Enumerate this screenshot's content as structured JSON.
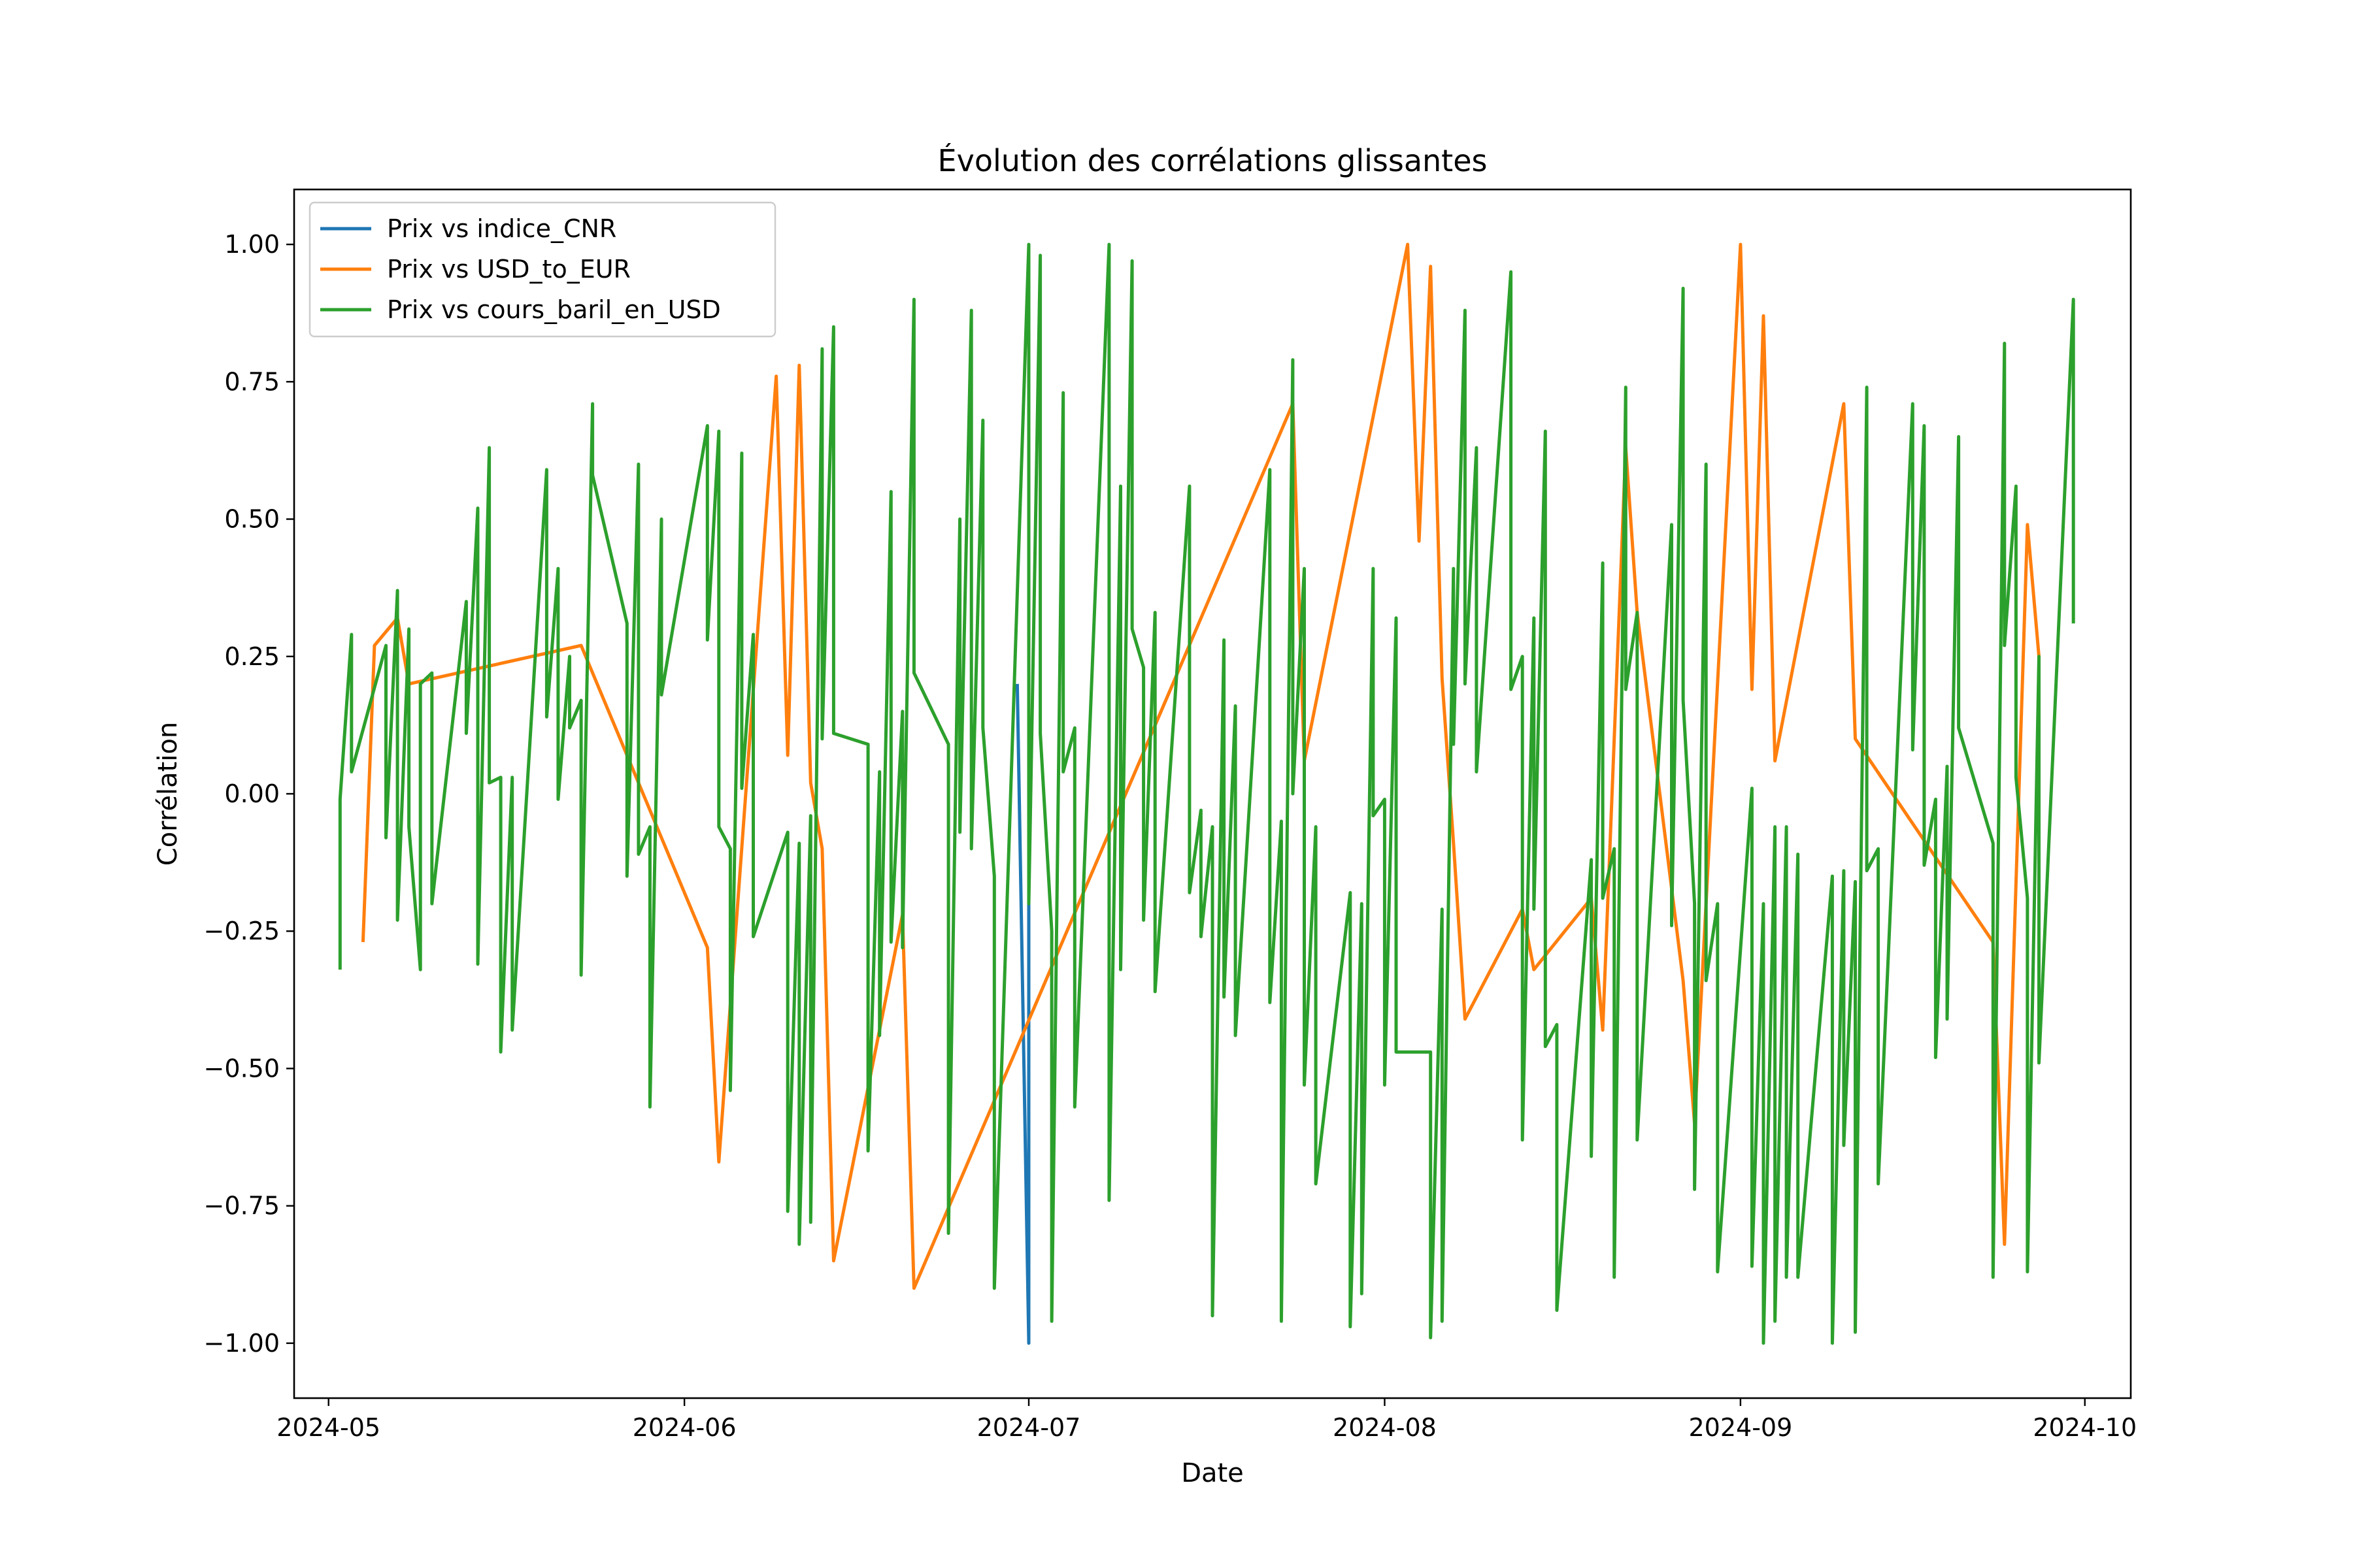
{
  "chart_data": {
    "type": "line",
    "title": "Évolution des corrélations glissantes",
    "xlabel": "Date",
    "ylabel": "Corrélation",
    "xlim": [
      "2024-04-28",
      "2024-10-05"
    ],
    "ylim": [
      -1.1,
      1.1
    ],
    "x_ticks": [
      "2024-05-01",
      "2024-06-01",
      "2024-07-01",
      "2024-08-01",
      "2024-09-01",
      "2024-10-01"
    ],
    "x_tick_labels": [
      "2024-05",
      "2024-06",
      "2024-07",
      "2024-08",
      "2024-09",
      "2024-10"
    ],
    "y_ticks": [
      -1.0,
      -0.75,
      -0.5,
      -0.25,
      0.0,
      0.25,
      0.5,
      0.75,
      1.0
    ],
    "y_tick_labels": [
      "−1.00",
      "−0.75",
      "−0.50",
      "−0.25",
      "0.00",
      "0.25",
      "0.50",
      "0.75",
      "1.00"
    ],
    "legend_position": "top-left",
    "grid": false,
    "series": [
      {
        "name": "Prix vs indice_CNR",
        "color": "#1f77b4",
        "points": [
          [
            "2024-06-30",
            0.2
          ],
          [
            "2024-07-01",
            -1.0
          ],
          [
            "2024-07-01",
            1.0
          ]
        ]
      },
      {
        "name": "Prix vs USD_to_EUR",
        "color": "#ff7f0e",
        "points": [
          [
            "2024-05-04",
            -0.27
          ],
          [
            "2024-05-05",
            0.27
          ],
          [
            "2024-05-07",
            0.32
          ],
          [
            "2024-05-08",
            0.2
          ],
          [
            "2024-05-23",
            0.27
          ],
          [
            "2024-06-03",
            -0.28
          ],
          [
            "2024-06-04",
            -0.67
          ],
          [
            "2024-06-09",
            0.76
          ],
          [
            "2024-06-10",
            0.07
          ],
          [
            "2024-06-11",
            0.78
          ],
          [
            "2024-06-12",
            0.02
          ],
          [
            "2024-06-13",
            -0.1
          ],
          [
            "2024-06-14",
            -0.85
          ],
          [
            "2024-06-20",
            -0.22
          ],
          [
            "2024-06-21",
            -0.9
          ],
          [
            "2024-07-24",
            0.71
          ],
          [
            "2024-07-25",
            0.06
          ],
          [
            "2024-08-03",
            1.0
          ],
          [
            "2024-08-04",
            0.46
          ],
          [
            "2024-08-05",
            0.96
          ],
          [
            "2024-08-06",
            0.21
          ],
          [
            "2024-08-07",
            -0.09
          ],
          [
            "2024-08-08",
            -0.41
          ],
          [
            "2024-08-13",
            -0.21
          ],
          [
            "2024-08-14",
            -0.32
          ],
          [
            "2024-08-19",
            -0.19
          ],
          [
            "2024-08-20",
            -0.43
          ],
          [
            "2024-08-22",
            0.63
          ],
          [
            "2024-08-23",
            0.33
          ],
          [
            "2024-08-27",
            -0.34
          ],
          [
            "2024-08-28",
            -0.6
          ],
          [
            "2024-09-01",
            1.0
          ],
          [
            "2024-09-02",
            0.19
          ],
          [
            "2024-09-03",
            0.87
          ],
          [
            "2024-09-04",
            0.06
          ],
          [
            "2024-09-10",
            0.71
          ],
          [
            "2024-09-11",
            0.1
          ],
          [
            "2024-09-23",
            -0.27
          ],
          [
            "2024-09-24",
            -0.82
          ],
          [
            "2024-09-26",
            0.49
          ],
          [
            "2024-09-27",
            0.25
          ]
        ]
      },
      {
        "name": "Prix vs cours_baril_en_USD",
        "color": "#2ca02c",
        "points": [
          [
            "2024-05-02",
            -0.32
          ],
          [
            "2024-05-02",
            -0.01
          ],
          [
            "2024-05-03",
            0.29
          ],
          [
            "2024-05-03",
            0.04
          ],
          [
            "2024-05-06",
            0.27
          ],
          [
            "2024-05-06",
            -0.08
          ],
          [
            "2024-05-07",
            0.37
          ],
          [
            "2024-05-07",
            -0.23
          ],
          [
            "2024-05-08",
            0.3
          ],
          [
            "2024-05-08",
            -0.06
          ],
          [
            "2024-05-09",
            -0.32
          ],
          [
            "2024-05-09",
            0.2
          ],
          [
            "2024-05-10",
            0.22
          ],
          [
            "2024-05-10",
            -0.2
          ],
          [
            "2024-05-13",
            0.35
          ],
          [
            "2024-05-13",
            0.11
          ],
          [
            "2024-05-14",
            0.52
          ],
          [
            "2024-05-14",
            -0.31
          ],
          [
            "2024-05-15",
            0.63
          ],
          [
            "2024-05-15",
            0.02
          ],
          [
            "2024-05-16",
            0.03
          ],
          [
            "2024-05-16",
            -0.47
          ],
          [
            "2024-05-17",
            0.03
          ],
          [
            "2024-05-17",
            -0.43
          ],
          [
            "2024-05-20",
            0.59
          ],
          [
            "2024-05-20",
            0.14
          ],
          [
            "2024-05-21",
            0.41
          ],
          [
            "2024-05-21",
            -0.01
          ],
          [
            "2024-05-22",
            0.25
          ],
          [
            "2024-05-22",
            0.12
          ],
          [
            "2024-05-23",
            0.17
          ],
          [
            "2024-05-23",
            -0.33
          ],
          [
            "2024-05-24",
            0.71
          ],
          [
            "2024-05-24",
            0.58
          ],
          [
            "2024-05-27",
            0.31
          ],
          [
            "2024-05-27",
            -0.15
          ],
          [
            "2024-05-28",
            0.6
          ],
          [
            "2024-05-28",
            -0.11
          ],
          [
            "2024-05-29",
            -0.06
          ],
          [
            "2024-05-29",
            -0.57
          ],
          [
            "2024-05-30",
            0.5
          ],
          [
            "2024-05-30",
            0.18
          ],
          [
            "2024-06-03",
            0.67
          ],
          [
            "2024-06-03",
            0.28
          ],
          [
            "2024-06-04",
            0.66
          ],
          [
            "2024-06-04",
            -0.06
          ],
          [
            "2024-06-05",
            -0.1
          ],
          [
            "2024-06-05",
            -0.54
          ],
          [
            "2024-06-06",
            0.62
          ],
          [
            "2024-06-06",
            0.01
          ],
          [
            "2024-06-07",
            0.29
          ],
          [
            "2024-06-07",
            -0.26
          ],
          [
            "2024-06-10",
            -0.07
          ],
          [
            "2024-06-10",
            -0.76
          ],
          [
            "2024-06-11",
            -0.09
          ],
          [
            "2024-06-11",
            -0.82
          ],
          [
            "2024-06-12",
            -0.04
          ],
          [
            "2024-06-12",
            -0.78
          ],
          [
            "2024-06-13",
            0.81
          ],
          [
            "2024-06-13",
            0.1
          ],
          [
            "2024-06-14",
            0.85
          ],
          [
            "2024-06-14",
            0.11
          ],
          [
            "2024-06-17",
            0.09
          ],
          [
            "2024-06-17",
            -0.65
          ],
          [
            "2024-06-18",
            0.04
          ],
          [
            "2024-06-18",
            -0.44
          ],
          [
            "2024-06-19",
            0.55
          ],
          [
            "2024-06-19",
            -0.27
          ],
          [
            "2024-06-20",
            0.15
          ],
          [
            "2024-06-20",
            -0.28
          ],
          [
            "2024-06-21",
            0.9
          ],
          [
            "2024-06-21",
            0.22
          ],
          [
            "2024-06-24",
            0.09
          ],
          [
            "2024-06-24",
            -0.8
          ],
          [
            "2024-06-25",
            0.5
          ],
          [
            "2024-06-25",
            -0.07
          ],
          [
            "2024-06-26",
            0.88
          ],
          [
            "2024-06-26",
            -0.1
          ],
          [
            "2024-06-27",
            0.68
          ],
          [
            "2024-06-27",
            0.12
          ],
          [
            "2024-06-28",
            -0.15
          ],
          [
            "2024-06-28",
            -0.9
          ],
          [
            "2024-07-01",
            1.0
          ],
          [
            "2024-07-01",
            -0.2
          ],
          [
            "2024-07-02",
            0.98
          ],
          [
            "2024-07-02",
            0.11
          ],
          [
            "2024-07-03",
            -0.25
          ],
          [
            "2024-07-03",
            -0.96
          ],
          [
            "2024-07-04",
            0.73
          ],
          [
            "2024-07-04",
            0.04
          ],
          [
            "2024-07-05",
            0.12
          ],
          [
            "2024-07-05",
            -0.57
          ],
          [
            "2024-07-08",
            1.0
          ],
          [
            "2024-07-08",
            -0.74
          ],
          [
            "2024-07-09",
            0.56
          ],
          [
            "2024-07-09",
            -0.32
          ],
          [
            "2024-07-10",
            0.97
          ],
          [
            "2024-07-10",
            0.3
          ],
          [
            "2024-07-11",
            0.23
          ],
          [
            "2024-07-11",
            -0.23
          ],
          [
            "2024-07-12",
            0.33
          ],
          [
            "2024-07-12",
            -0.36
          ],
          [
            "2024-07-15",
            0.56
          ],
          [
            "2024-07-15",
            -0.18
          ],
          [
            "2024-07-16",
            -0.03
          ],
          [
            "2024-07-16",
            -0.26
          ],
          [
            "2024-07-17",
            -0.06
          ],
          [
            "2024-07-17",
            -0.95
          ],
          [
            "2024-07-18",
            0.28
          ],
          [
            "2024-07-18",
            -0.37
          ],
          [
            "2024-07-19",
            0.16
          ],
          [
            "2024-07-19",
            -0.44
          ],
          [
            "2024-07-22",
            0.59
          ],
          [
            "2024-07-22",
            -0.38
          ],
          [
            "2024-07-23",
            -0.05
          ],
          [
            "2024-07-23",
            -0.96
          ],
          [
            "2024-07-24",
            0.79
          ],
          [
            "2024-07-24",
            0.0
          ],
          [
            "2024-07-25",
            0.41
          ],
          [
            "2024-07-25",
            -0.53
          ],
          [
            "2024-07-26",
            -0.06
          ],
          [
            "2024-07-26",
            -0.71
          ],
          [
            "2024-07-29",
            -0.18
          ],
          [
            "2024-07-29",
            -0.97
          ],
          [
            "2024-07-30",
            -0.2
          ],
          [
            "2024-07-30",
            -0.91
          ],
          [
            "2024-07-31",
            0.41
          ],
          [
            "2024-07-31",
            -0.04
          ],
          [
            "2024-08-01",
            -0.01
          ],
          [
            "2024-08-01",
            -0.53
          ],
          [
            "2024-08-02",
            0.32
          ],
          [
            "2024-08-02",
            -0.47
          ],
          [
            "2024-08-05",
            -0.47
          ],
          [
            "2024-08-05",
            -0.99
          ],
          [
            "2024-08-06",
            -0.21
          ],
          [
            "2024-08-06",
            -0.96
          ],
          [
            "2024-08-07",
            0.41
          ],
          [
            "2024-08-07",
            0.09
          ],
          [
            "2024-08-08",
            0.88
          ],
          [
            "2024-08-08",
            0.2
          ],
          [
            "2024-08-09",
            0.63
          ],
          [
            "2024-08-09",
            0.04
          ],
          [
            "2024-08-12",
            0.95
          ],
          [
            "2024-08-12",
            0.19
          ],
          [
            "2024-08-13",
            0.25
          ],
          [
            "2024-08-13",
            -0.63
          ],
          [
            "2024-08-14",
            0.32
          ],
          [
            "2024-08-14",
            -0.21
          ],
          [
            "2024-08-15",
            0.66
          ],
          [
            "2024-08-15",
            -0.46
          ],
          [
            "2024-08-16",
            -0.42
          ],
          [
            "2024-08-16",
            -0.94
          ],
          [
            "2024-08-19",
            -0.12
          ],
          [
            "2024-08-19",
            -0.66
          ],
          [
            "2024-08-20",
            0.42
          ],
          [
            "2024-08-20",
            -0.19
          ],
          [
            "2024-08-21",
            -0.1
          ],
          [
            "2024-08-21",
            -0.88
          ],
          [
            "2024-08-22",
            0.74
          ],
          [
            "2024-08-22",
            0.19
          ],
          [
            "2024-08-23",
            0.33
          ],
          [
            "2024-08-23",
            -0.63
          ],
          [
            "2024-08-26",
            0.49
          ],
          [
            "2024-08-26",
            -0.24
          ],
          [
            "2024-08-27",
            0.92
          ],
          [
            "2024-08-27",
            0.17
          ],
          [
            "2024-08-28",
            -0.2
          ],
          [
            "2024-08-28",
            -0.72
          ],
          [
            "2024-08-29",
            0.6
          ],
          [
            "2024-08-29",
            -0.34
          ],
          [
            "2024-08-30",
            -0.2
          ],
          [
            "2024-08-30",
            -0.87
          ],
          [
            "2024-09-02",
            0.01
          ],
          [
            "2024-09-02",
            -0.86
          ],
          [
            "2024-09-03",
            -0.2
          ],
          [
            "2024-09-03",
            -1.0
          ],
          [
            "2024-09-04",
            -0.06
          ],
          [
            "2024-09-04",
            -0.96
          ],
          [
            "2024-09-05",
            -0.06
          ],
          [
            "2024-09-05",
            -0.88
          ],
          [
            "2024-09-06",
            -0.11
          ],
          [
            "2024-09-06",
            -0.88
          ],
          [
            "2024-09-09",
            -0.15
          ],
          [
            "2024-09-09",
            -1.0
          ],
          [
            "2024-09-10",
            -0.14
          ],
          [
            "2024-09-10",
            -0.64
          ],
          [
            "2024-09-11",
            -0.16
          ],
          [
            "2024-09-11",
            -0.98
          ],
          [
            "2024-09-12",
            0.74
          ],
          [
            "2024-09-12",
            -0.14
          ],
          [
            "2024-09-13",
            -0.1
          ],
          [
            "2024-09-13",
            -0.71
          ],
          [
            "2024-09-16",
            0.71
          ],
          [
            "2024-09-16",
            0.08
          ],
          [
            "2024-09-17",
            0.67
          ],
          [
            "2024-09-17",
            -0.13
          ],
          [
            "2024-09-18",
            -0.01
          ],
          [
            "2024-09-18",
            -0.48
          ],
          [
            "2024-09-19",
            0.05
          ],
          [
            "2024-09-19",
            -0.41
          ],
          [
            "2024-09-20",
            0.65
          ],
          [
            "2024-09-20",
            0.12
          ],
          [
            "2024-09-23",
            -0.09
          ],
          [
            "2024-09-23",
            -0.88
          ],
          [
            "2024-09-24",
            0.82
          ],
          [
            "2024-09-24",
            0.27
          ],
          [
            "2024-09-25",
            0.56
          ],
          [
            "2024-09-25",
            0.03
          ],
          [
            "2024-09-26",
            -0.19
          ],
          [
            "2024-09-26",
            -0.87
          ],
          [
            "2024-09-27",
            0.25
          ],
          [
            "2024-09-27",
            -0.49
          ],
          [
            "2024-09-30",
            0.9
          ],
          [
            "2024-09-30",
            0.31
          ]
        ]
      }
    ]
  }
}
